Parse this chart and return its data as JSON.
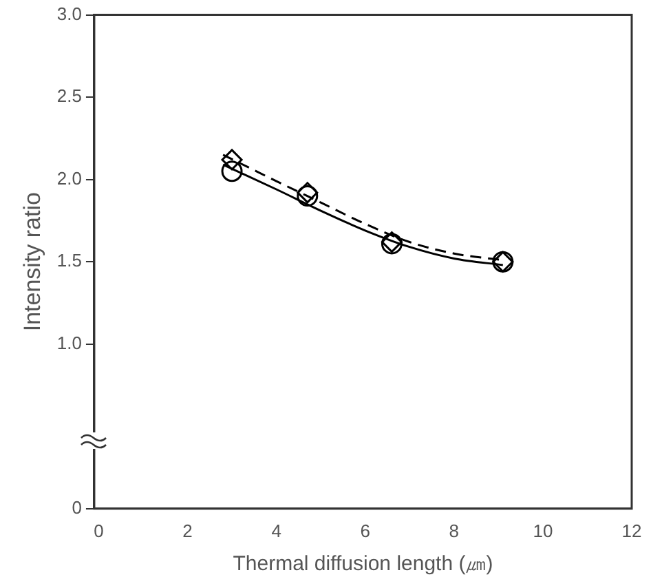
{
  "chart_data": {
    "type": "scatter",
    "xlabel": "Thermal diffusion length (㎛)",
    "ylabel": "Intensity ratio",
    "xlim": [
      -0.1,
      12
    ],
    "xticks": [
      0,
      2,
      4,
      6,
      8,
      10,
      12
    ],
    "ylim": [
      0,
      3
    ],
    "yticks": [
      0,
      {
        "value": 1,
        "label": "1.0"
      },
      {
        "value": 1.5,
        "label": "1.5"
      },
      {
        "value": 2,
        "label": "2.0"
      },
      {
        "value": 2.5,
        "label": "2.5"
      },
      {
        "value": 3,
        "label": "3.0"
      }
    ],
    "grid": false,
    "legend": false,
    "series": [
      {
        "type": "scatter",
        "marker": "diamond",
        "color": "#000000",
        "x": [
          3.0,
          4.7,
          6.6,
          9.1
        ],
        "values": [
          2.12,
          1.92,
          1.62,
          1.5
        ]
      },
      {
        "type": "scatter",
        "marker": "circle",
        "color": "#000000",
        "x": [
          3.0,
          4.7,
          6.6,
          9.1
        ],
        "values": [
          2.05,
          1.9,
          1.61,
          1.5
        ]
      },
      {
        "type": "line",
        "line_style": "dashed",
        "color": "#000000",
        "x": [
          2.8,
          4.0,
          5.0,
          6.0,
          7.0,
          8.0,
          9.1
        ],
        "values": [
          2.15,
          1.99,
          1.86,
          1.73,
          1.62,
          1.55,
          1.51
        ]
      },
      {
        "type": "line",
        "line_style": "solid",
        "color": "#000000",
        "x": [
          2.8,
          4.0,
          5.0,
          6.0,
          7.0,
          8.0,
          9.1
        ],
        "values": [
          2.09,
          1.94,
          1.81,
          1.69,
          1.59,
          1.52,
          1.48
        ]
      }
    ]
  }
}
